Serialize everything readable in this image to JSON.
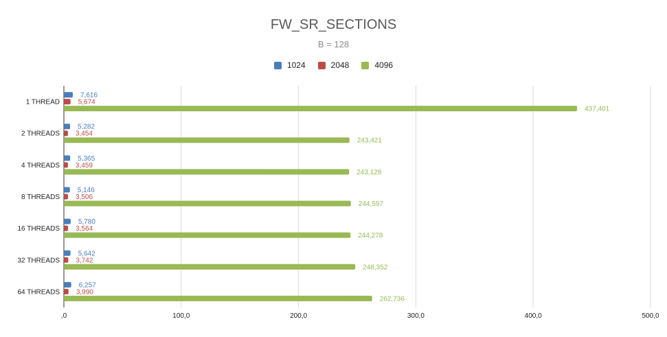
{
  "chart_data": {
    "type": "bar",
    "orientation": "horizontal",
    "title": "FW_SR_SECTIONS",
    "subtitle": "B = 128",
    "categories": [
      "1 THREAD",
      "2 THREADS",
      "4 THREADS",
      "8 THREADS",
      "16 THREADS",
      "32 THREADS",
      "64 THREADS"
    ],
    "series": [
      {
        "name": "1024",
        "color": "#4a7ebb",
        "values": [
          7.616,
          5.282,
          5.365,
          5.146,
          5.78,
          5.642,
          6.257
        ],
        "labels": [
          "7,616",
          "5,282",
          "5,365",
          "5,146",
          "5,780",
          "5,642",
          "6,257"
        ]
      },
      {
        "name": "2048",
        "color": "#be4b48",
        "values": [
          5.674,
          3.454,
          3.459,
          3.506,
          3.564,
          3.742,
          3.99
        ],
        "labels": [
          "5,674",
          "3,454",
          "3,459",
          "3,506",
          "3,564",
          "3,742",
          "3,990"
        ]
      },
      {
        "name": "4096",
        "color": "#98b954",
        "values": [
          437.401,
          243.421,
          243.128,
          244.597,
          244.278,
          248.352,
          262.736
        ],
        "labels": [
          "437,401",
          "243,421",
          "243,128",
          "244,597",
          "244,278",
          "248,352",
          "262,736"
        ]
      }
    ],
    "xlim": [
      0,
      500
    ],
    "xticks": [
      0,
      100,
      200,
      300,
      400,
      500
    ],
    "xtick_labels": [
      ",0",
      "100,0",
      "200,0",
      "300,0",
      "400,0",
      "500,0"
    ],
    "grid": true,
    "legend_position": "top"
  }
}
